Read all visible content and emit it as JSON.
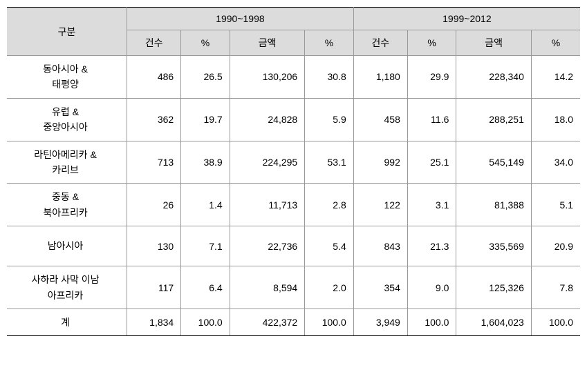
{
  "table": {
    "header": {
      "category_label": "구분",
      "period1_label": "1990~1998",
      "period2_label": "1999~2012",
      "count_label": "건수",
      "pct_label": "%",
      "amount_label": "금액"
    },
    "rows": [
      {
        "label_line1": "동아시아 &",
        "label_line2": "태평양",
        "p1_count": "486",
        "p1_count_pct": "26.5",
        "p1_amount": "130,206",
        "p1_amount_pct": "30.8",
        "p2_count": "1,180",
        "p2_count_pct": "29.9",
        "p2_amount": "228,340",
        "p2_amount_pct": "14.2"
      },
      {
        "label_line1": "유럽 &",
        "label_line2": "중앙아시아",
        "p1_count": "362",
        "p1_count_pct": "19.7",
        "p1_amount": "24,828",
        "p1_amount_pct": "5.9",
        "p2_count": "458",
        "p2_count_pct": "11.6",
        "p2_amount": "288,251",
        "p2_amount_pct": "18.0"
      },
      {
        "label_line1": "라틴아메리카 &",
        "label_line2": "카리브",
        "p1_count": "713",
        "p1_count_pct": "38.9",
        "p1_amount": "224,295",
        "p1_amount_pct": "53.1",
        "p2_count": "992",
        "p2_count_pct": "25.1",
        "p2_amount": "545,149",
        "p2_amount_pct": "34.0"
      },
      {
        "label_line1": "중동 &",
        "label_line2": "북아프리카",
        "p1_count": "26",
        "p1_count_pct": "1.4",
        "p1_amount": "11,713",
        "p1_amount_pct": "2.8",
        "p2_count": "122",
        "p2_count_pct": "3.1",
        "p2_amount": "81,388",
        "p2_amount_pct": "5.1"
      },
      {
        "label_line1": "남아시아",
        "label_line2": "",
        "p1_count": "130",
        "p1_count_pct": "7.1",
        "p1_amount": "22,736",
        "p1_amount_pct": "5.4",
        "p2_count": "843",
        "p2_count_pct": "21.3",
        "p2_amount": "335,569",
        "p2_amount_pct": "20.9"
      },
      {
        "label_line1": "사하라 사막 이남",
        "label_line2": "아프리카",
        "p1_count": "117",
        "p1_count_pct": "6.4",
        "p1_amount": "8,594",
        "p1_amount_pct": "2.0",
        "p2_count": "354",
        "p2_count_pct": "9.0",
        "p2_amount": "125,326",
        "p2_amount_pct": "7.8"
      },
      {
        "label_line1": "계",
        "label_line2": "",
        "p1_count": "1,834",
        "p1_count_pct": "100.0",
        "p1_amount": "422,372",
        "p1_amount_pct": "100.0",
        "p2_count": "3,949",
        "p2_count_pct": "100.0",
        "p2_amount": "1,604,023",
        "p2_amount_pct": "100.0"
      }
    ]
  }
}
